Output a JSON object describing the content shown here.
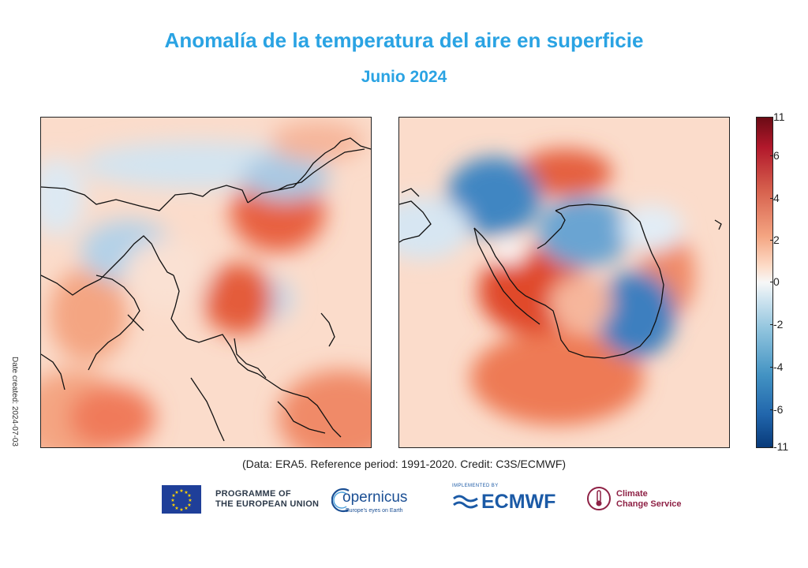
{
  "title": "Anomalía de la temperatura del aire en superficie",
  "subtitle": "Junio 2024",
  "maps": {
    "north": {
      "name": "Northern hemisphere polar view"
    },
    "south": {
      "name": "Southern hemisphere polar view"
    }
  },
  "date_created": "Date created: 2024-07-03",
  "colorbar": {
    "ticks": [
      "11",
      "6",
      "4",
      "2",
      "0",
      "-2",
      "-4",
      "-6",
      "-11"
    ],
    "colors": {
      "max": "#6b0b15",
      "mid": "#f7f7f7",
      "min": "#083a7a"
    }
  },
  "credits": "(Data: ERA5.  Reference period: 1991-2020.  Credit: C3S/ECMWF)",
  "logos": {
    "eu_line1": "PROGRAMME OF",
    "eu_line2": "THE EUROPEAN UNION",
    "copernicus": "opernicus",
    "copernicus_tagline": "Europe's eyes on Earth",
    "ecmwf_implemented": "IMPLEMENTED BY",
    "ecmwf": "ECMWF",
    "ccs_line1": "Climate",
    "ccs_line2": "Change Service"
  }
}
